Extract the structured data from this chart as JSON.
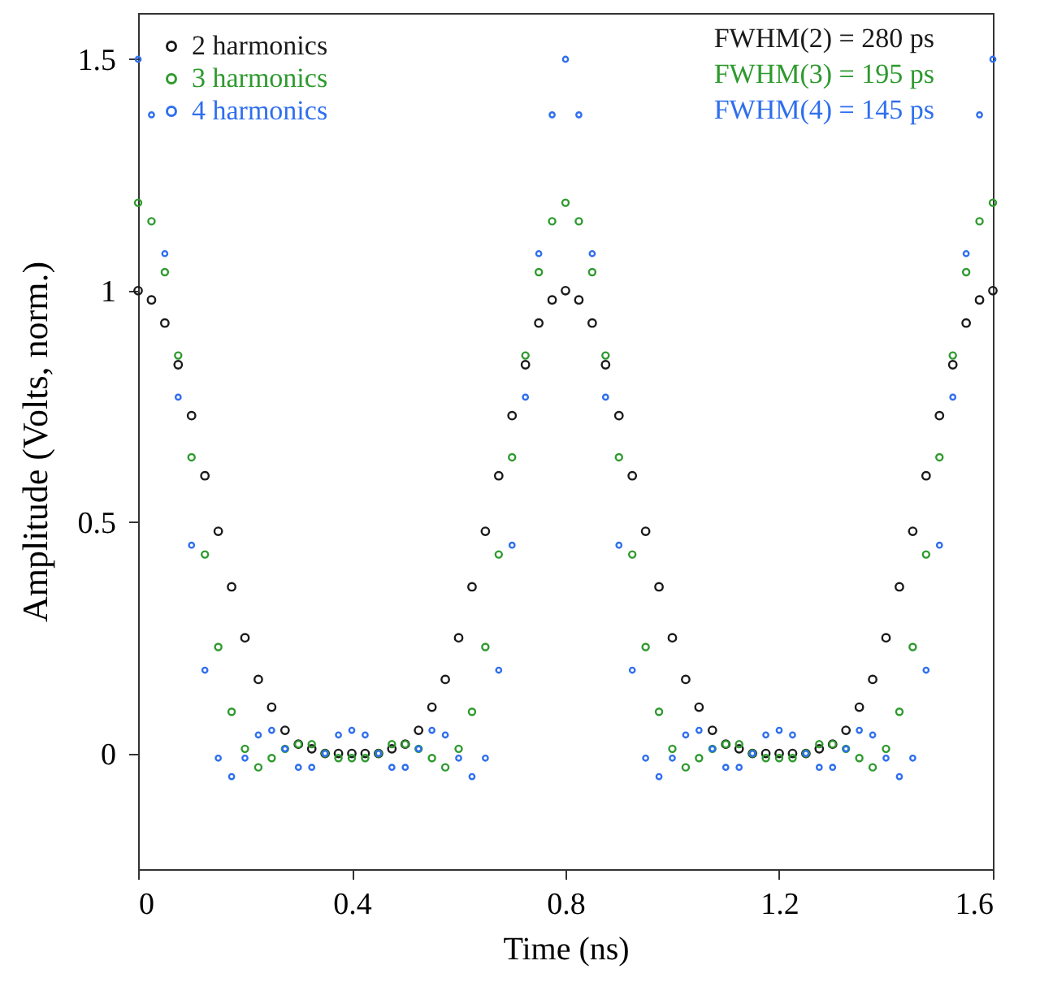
{
  "chart_data": {
    "type": "scatter",
    "xlabel": "Time (ns)",
    "ylabel": "Amplitude (Volts, norm.)",
    "x": [
      0,
      0.025,
      0.05,
      0.075,
      0.1,
      0.125,
      0.15,
      0.175,
      0.2,
      0.225,
      0.25,
      0.275,
      0.3,
      0.325,
      0.35,
      0.375,
      0.4,
      0.425,
      0.45,
      0.475,
      0.5,
      0.525,
      0.55,
      0.575,
      0.6,
      0.625,
      0.65,
      0.675,
      0.7,
      0.725,
      0.75,
      0.775,
      0.8,
      0.825,
      0.85,
      0.875,
      0.9,
      0.925,
      0.95,
      0.975,
      1,
      1.025,
      1.05,
      1.075,
      1.1,
      1.125,
      1.15,
      1.175,
      1.2,
      1.225,
      1.25,
      1.275,
      1.3,
      1.325,
      1.35,
      1.375,
      1.4,
      1.425,
      1.45,
      1.475,
      1.5,
      1.525,
      1.55,
      1.575,
      1.6
    ],
    "series": [
      {
        "name": "2 harmonics",
        "color": "#1a1a1a",
        "values": [
          1,
          0.98,
          0.93,
          0.84,
          0.73,
          0.6,
          0.48,
          0.36,
          0.25,
          0.16,
          0.1,
          0.05,
          0.02,
          0.01,
          0,
          0,
          0,
          0,
          0,
          0.01,
          0.02,
          0.05,
          0.1,
          0.16,
          0.25,
          0.36,
          0.48,
          0.6,
          0.73,
          0.84,
          0.93,
          0.98,
          1,
          0.98,
          0.93,
          0.84,
          0.73,
          0.6,
          0.48,
          0.36,
          0.25,
          0.16,
          0.1,
          0.05,
          0.02,
          0.01,
          0,
          0,
          0,
          0,
          0,
          0.01,
          0.02,
          0.05,
          0.1,
          0.16,
          0.25,
          0.36,
          0.48,
          0.6,
          0.73,
          0.84,
          0.93,
          0.98,
          1
        ]
      },
      {
        "name": "3 harmonics",
        "color": "#2e9a2e",
        "values": [
          1.19,
          1.15,
          1.04,
          0.86,
          0.64,
          0.43,
          0.23,
          0.09,
          0.01,
          -0.03,
          -0.01,
          0.01,
          0.02,
          0.02,
          0,
          -0.01,
          -0.01,
          -0.01,
          0,
          0.02,
          0.02,
          0.01,
          -0.01,
          -0.03,
          0.01,
          0.09,
          0.23,
          0.43,
          0.64,
          0.86,
          1.04,
          1.15,
          1.19,
          1.15,
          1.04,
          0.86,
          0.64,
          0.43,
          0.23,
          0.09,
          0.01,
          -0.03,
          -0.01,
          0.01,
          0.02,
          0.02,
          0,
          -0.01,
          -0.01,
          -0.01,
          0,
          0.02,
          0.02,
          0.01,
          -0.01,
          -0.03,
          0.01,
          0.09,
          0.23,
          0.43,
          0.64,
          0.86,
          1.04,
          1.15,
          1.19
        ]
      },
      {
        "name": "4 harmonics",
        "color": "#2f6fef",
        "values": [
          1.5,
          1.38,
          1.08,
          0.77,
          0.45,
          0.18,
          -0.01,
          -0.05,
          -0.01,
          0.04,
          0.05,
          0.01,
          -0.03,
          -0.03,
          0,
          0.04,
          0.05,
          0.04,
          0,
          -0.03,
          -0.03,
          0.01,
          0.05,
          0.04,
          -0.01,
          -0.05,
          -0.01,
          0.18,
          0.45,
          0.77,
          1.08,
          1.38,
          1.5,
          1.38,
          1.08,
          0.77,
          0.45,
          0.18,
          -0.01,
          -0.05,
          -0.01,
          0.04,
          0.05,
          0.01,
          -0.03,
          -0.03,
          0,
          0.04,
          0.05,
          0.04,
          0,
          -0.03,
          -0.03,
          0.01,
          0.05,
          0.04,
          -0.01,
          -0.05,
          -0.01,
          0.18,
          0.45,
          0.77,
          1.08,
          1.38,
          1.5
        ]
      }
    ],
    "annotations": [
      "FWHM(2) = 280 ps",
      "FWHM(3) = 195 ps",
      "FWHM(4) = 145 ps"
    ],
    "xlim": [
      0,
      1.6
    ],
    "xticks": [
      0,
      0.4,
      0.8,
      1.2,
      1.6
    ],
    "ylim": [
      -0.25,
      1.6
    ],
    "yticks": [
      0,
      0.5,
      1,
      1.5
    ],
    "grid": false,
    "legend": "top left",
    "marker": "circle"
  }
}
